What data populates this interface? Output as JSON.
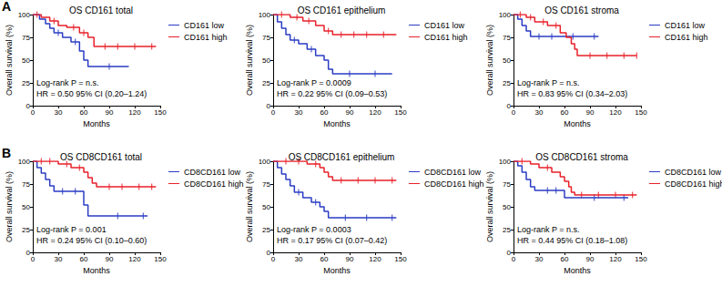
{
  "chart_data": [
    {
      "type": "line",
      "panel_label": "A",
      "title": "OS CD161 total",
      "x_label": "Months",
      "y_label": "Overall survival (%)",
      "xlim": [
        0,
        150
      ],
      "xticks": [
        0,
        30,
        60,
        90,
        120,
        150
      ],
      "ylim": [
        0,
        100
      ],
      "yticks": [
        0,
        25,
        50,
        75,
        100
      ],
      "annotations": [
        "Log-rank P = n.s.",
        "HR = 0.50 95% CI (0.20–1.24)"
      ],
      "series": [
        {
          "name": "CD161 low",
          "color": "#2b3cc4",
          "line_style": "step",
          "x": [
            0,
            8,
            15,
            20,
            25,
            35,
            45,
            55,
            60,
            65,
            113
          ],
          "values": [
            100,
            95,
            90,
            85,
            80,
            75,
            70,
            60,
            50,
            43,
            43
          ],
          "censored_x": [
            30,
            50,
            90
          ],
          "censored_values": [
            80,
            70,
            43
          ]
        },
        {
          "name": "CD161 high",
          "color": "#e8202a",
          "line_style": "step",
          "x": [
            0,
            10,
            20,
            30,
            40,
            55,
            65,
            72,
            145
          ],
          "values": [
            100,
            97,
            93,
            88,
            86,
            80,
            75,
            65,
            65
          ],
          "censored_x": [
            5,
            25,
            48,
            60,
            85,
            100,
            120,
            140
          ],
          "censored_values": [
            100,
            93,
            86,
            80,
            65,
            65,
            65,
            65
          ]
        }
      ]
    },
    {
      "type": "line",
      "title": "OS CD161 epithelium",
      "x_label": "Months",
      "y_label": "Overall survival (%)",
      "xlim": [
        0,
        150
      ],
      "xticks": [
        0,
        30,
        60,
        90,
        120,
        150
      ],
      "ylim": [
        0,
        100
      ],
      "yticks": [
        0,
        25,
        50,
        75,
        100
      ],
      "annotations": [
        "Log-rank P = 0.0009",
        "HR = 0.22 95% CI (0.09–0.53)"
      ],
      "series": [
        {
          "name": "CD161 low",
          "color": "#2b3cc4",
          "line_style": "step",
          "x": [
            0,
            5,
            10,
            15,
            20,
            30,
            40,
            50,
            60,
            65,
            70,
            140
          ],
          "values": [
            100,
            92,
            85,
            78,
            72,
            68,
            62,
            55,
            50,
            40,
            35,
            35
          ],
          "censored_x": [
            25,
            45,
            90,
            120
          ],
          "censored_values": [
            72,
            62,
            35,
            35
          ]
        },
        {
          "name": "CD161 high",
          "color": "#e8202a",
          "line_style": "step",
          "x": [
            0,
            20,
            35,
            50,
            60,
            70,
            145
          ],
          "values": [
            100,
            97,
            93,
            88,
            82,
            78,
            78
          ],
          "censored_x": [
            10,
            28,
            42,
            65,
            80,
            95,
            110,
            130
          ],
          "censored_values": [
            100,
            97,
            93,
            82,
            78,
            78,
            78,
            78
          ]
        }
      ]
    },
    {
      "type": "line",
      "title": "OS CD161 stroma",
      "x_label": "Months",
      "y_label": "Overall survival (%)",
      "xlim": [
        0,
        150
      ],
      "xticks": [
        0,
        30,
        60,
        90,
        120,
        150
      ],
      "ylim": [
        0,
        100
      ],
      "yticks": [
        0,
        25,
        50,
        75,
        100
      ],
      "annotations": [
        "Log-rank P = n.s.",
        "HR = 0.83 95% CI (0.34–2.03)"
      ],
      "series": [
        {
          "name": "CD161 low",
          "color": "#2b3cc4",
          "line_style": "step",
          "x": [
            0,
            5,
            10,
            15,
            20,
            100
          ],
          "values": [
            100,
            95,
            88,
            82,
            76,
            76
          ],
          "censored_x": [
            30,
            45,
            70,
            95
          ],
          "censored_values": [
            76,
            76,
            76,
            76
          ]
        },
        {
          "name": "CD161 high",
          "color": "#e8202a",
          "line_style": "step",
          "x": [
            0,
            15,
            25,
            40,
            55,
            62,
            68,
            72,
            75,
            145
          ],
          "values": [
            100,
            97,
            92,
            88,
            80,
            75,
            68,
            62,
            55,
            55
          ],
          "censored_x": [
            8,
            20,
            35,
            50,
            90,
            110,
            130,
            145
          ],
          "censored_values": [
            100,
            97,
            92,
            88,
            55,
            55,
            55,
            55
          ]
        }
      ]
    },
    {
      "type": "line",
      "panel_label": "B",
      "title": "OS CD8CD161 total",
      "x_label": "Months",
      "y_label": "Overall survival (%)",
      "xlim": [
        0,
        150
      ],
      "xticks": [
        0,
        30,
        60,
        90,
        120,
        150
      ],
      "ylim": [
        0,
        100
      ],
      "yticks": [
        0,
        25,
        50,
        75,
        100
      ],
      "annotations": [
        "Log-rank P = 0.001",
        "HR = 0.24 95% CI (0.10–0.60)"
      ],
      "series": [
        {
          "name": "CD8CD161 low",
          "color": "#2b3cc4",
          "line_style": "step",
          "x": [
            0,
            5,
            10,
            15,
            20,
            25,
            60,
            65,
            135
          ],
          "values": [
            100,
            93,
            87,
            80,
            73,
            67,
            52,
            40,
            40
          ],
          "censored_x": [
            35,
            50,
            100,
            130
          ],
          "censored_values": [
            67,
            67,
            40,
            40
          ]
        },
        {
          "name": "CD8CD161 high",
          "color": "#e8202a",
          "line_style": "step",
          "x": [
            0,
            30,
            45,
            60,
            65,
            70,
            75,
            145
          ],
          "values": [
            100,
            97,
            93,
            88,
            82,
            76,
            72,
            72
          ],
          "censored_x": [
            10,
            20,
            40,
            55,
            90,
            105,
            125,
            140
          ],
          "censored_values": [
            100,
            100,
            97,
            93,
            72,
            72,
            72,
            72
          ]
        }
      ]
    },
    {
      "type": "line",
      "title": "OS CD8CD161 epithelium",
      "x_label": "Months",
      "y_label": "Overall survival (%)",
      "xlim": [
        0,
        150
      ],
      "xticks": [
        0,
        30,
        60,
        90,
        120,
        150
      ],
      "ylim": [
        0,
        100
      ],
      "yticks": [
        0,
        25,
        50,
        75,
        100
      ],
      "annotations": [
        "Log-rank P = 0.0003",
        "HR = 0.17 95% CI (0.07–0.42)"
      ],
      "series": [
        {
          "name": "CD8CD161 low",
          "color": "#2b3cc4",
          "line_style": "step",
          "x": [
            0,
            5,
            10,
            15,
            20,
            25,
            35,
            45,
            55,
            60,
            65,
            145
          ],
          "values": [
            100,
            93,
            86,
            80,
            73,
            66,
            60,
            55,
            50,
            45,
            38,
            38
          ],
          "censored_x": [
            30,
            50,
            85,
            110,
            140
          ],
          "censored_values": [
            66,
            55,
            38,
            38,
            38
          ]
        },
        {
          "name": "CD8CD161 high",
          "color": "#e8202a",
          "line_style": "step",
          "x": [
            0,
            40,
            55,
            60,
            65,
            70,
            145
          ],
          "values": [
            100,
            97,
            93,
            88,
            83,
            79,
            79
          ],
          "censored_x": [
            15,
            30,
            50,
            80,
            100,
            120,
            140
          ],
          "censored_values": [
            100,
            100,
            97,
            79,
            79,
            79,
            79
          ]
        }
      ]
    },
    {
      "type": "line",
      "title": "OS CD8CD161 stroma",
      "x_label": "Months",
      "y_label": "Overall survival (%)",
      "xlim": [
        0,
        150
      ],
      "xticks": [
        0,
        30,
        60,
        90,
        120,
        150
      ],
      "ylim": [
        0,
        100
      ],
      "yticks": [
        0,
        25,
        50,
        75,
        100
      ],
      "annotations": [
        "Log-rank P = n.s.",
        "HR = 0.44 95% CI (0.18–1.08)"
      ],
      "series": [
        {
          "name": "CD8CD161 low",
          "color": "#2b3cc4",
          "line_style": "step",
          "x": [
            0,
            5,
            10,
            15,
            20,
            25,
            60,
            135
          ],
          "values": [
            100,
            95,
            88,
            80,
            72,
            68,
            60,
            60
          ],
          "censored_x": [
            40,
            50,
            95,
            130
          ],
          "censored_values": [
            68,
            68,
            60,
            60
          ]
        },
        {
          "name": "CD8CD161 high",
          "color": "#e8202a",
          "line_style": "step",
          "x": [
            0,
            20,
            30,
            45,
            55,
            60,
            65,
            68,
            72,
            145
          ],
          "values": [
            100,
            97,
            93,
            88,
            83,
            78,
            72,
            66,
            63,
            63
          ],
          "censored_x": [
            10,
            40,
            80,
            100,
            120,
            140
          ],
          "censored_values": [
            100,
            93,
            63,
            63,
            63,
            63
          ]
        }
      ]
    }
  ]
}
